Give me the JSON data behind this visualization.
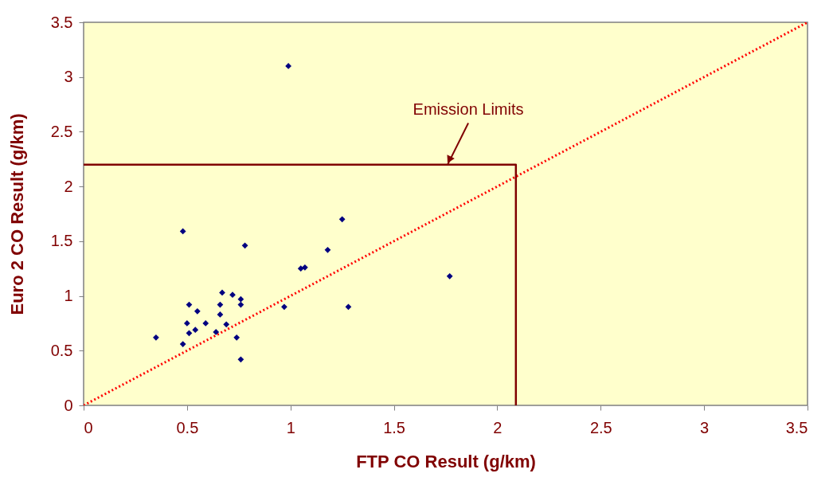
{
  "chart_data": {
    "type": "scatter",
    "xlabel": "FTP CO Result (g/km)",
    "ylabel": "Euro 2 CO Result (g/km)",
    "xlim": [
      0,
      3.5
    ],
    "ylim": [
      0,
      3.5
    ],
    "xticks": [
      0,
      0.5,
      1,
      1.5,
      2,
      2.5,
      3,
      3.5
    ],
    "yticks": [
      0,
      0.5,
      1,
      1.5,
      2,
      2.5,
      3,
      3.5
    ],
    "grid": false,
    "series": [
      {
        "marker": "diamond",
        "color": "#000080",
        "x": [
          0.48,
          0.78,
          1.25,
          1.18,
          1.05,
          1.07,
          0.67,
          0.72,
          0.76,
          0.76,
          0.66,
          0.51,
          0.55,
          0.66,
          0.97,
          1.28,
          0.5,
          0.59,
          0.69,
          0.54,
          0.51,
          0.64,
          0.35,
          0.74,
          0.48,
          0.76,
          0.99,
          1.77
        ],
        "values": [
          1.59,
          1.46,
          1.7,
          1.42,
          1.25,
          1.26,
          1.03,
          1.01,
          0.97,
          0.92,
          0.92,
          0.92,
          0.86,
          0.83,
          0.9,
          0.9,
          0.75,
          0.75,
          0.74,
          0.69,
          0.66,
          0.67,
          0.62,
          0.62,
          0.56,
          0.42,
          3.1,
          1.18
        ]
      },
      {
        "type": "line",
        "color": "#ff0000",
        "line_style": "dotted",
        "x": [
          0,
          3.5
        ],
        "values": [
          0,
          3.5
        ]
      },
      {
        "type": "line",
        "color": "#800000",
        "line_style": "solid",
        "x": [
          0,
          2.09,
          2.09
        ],
        "values": [
          2.2,
          2.2,
          0
        ]
      }
    ],
    "annotations": [
      {
        "text": "Emission Limits",
        "x": 1.76,
        "y": 2.2
      }
    ]
  }
}
